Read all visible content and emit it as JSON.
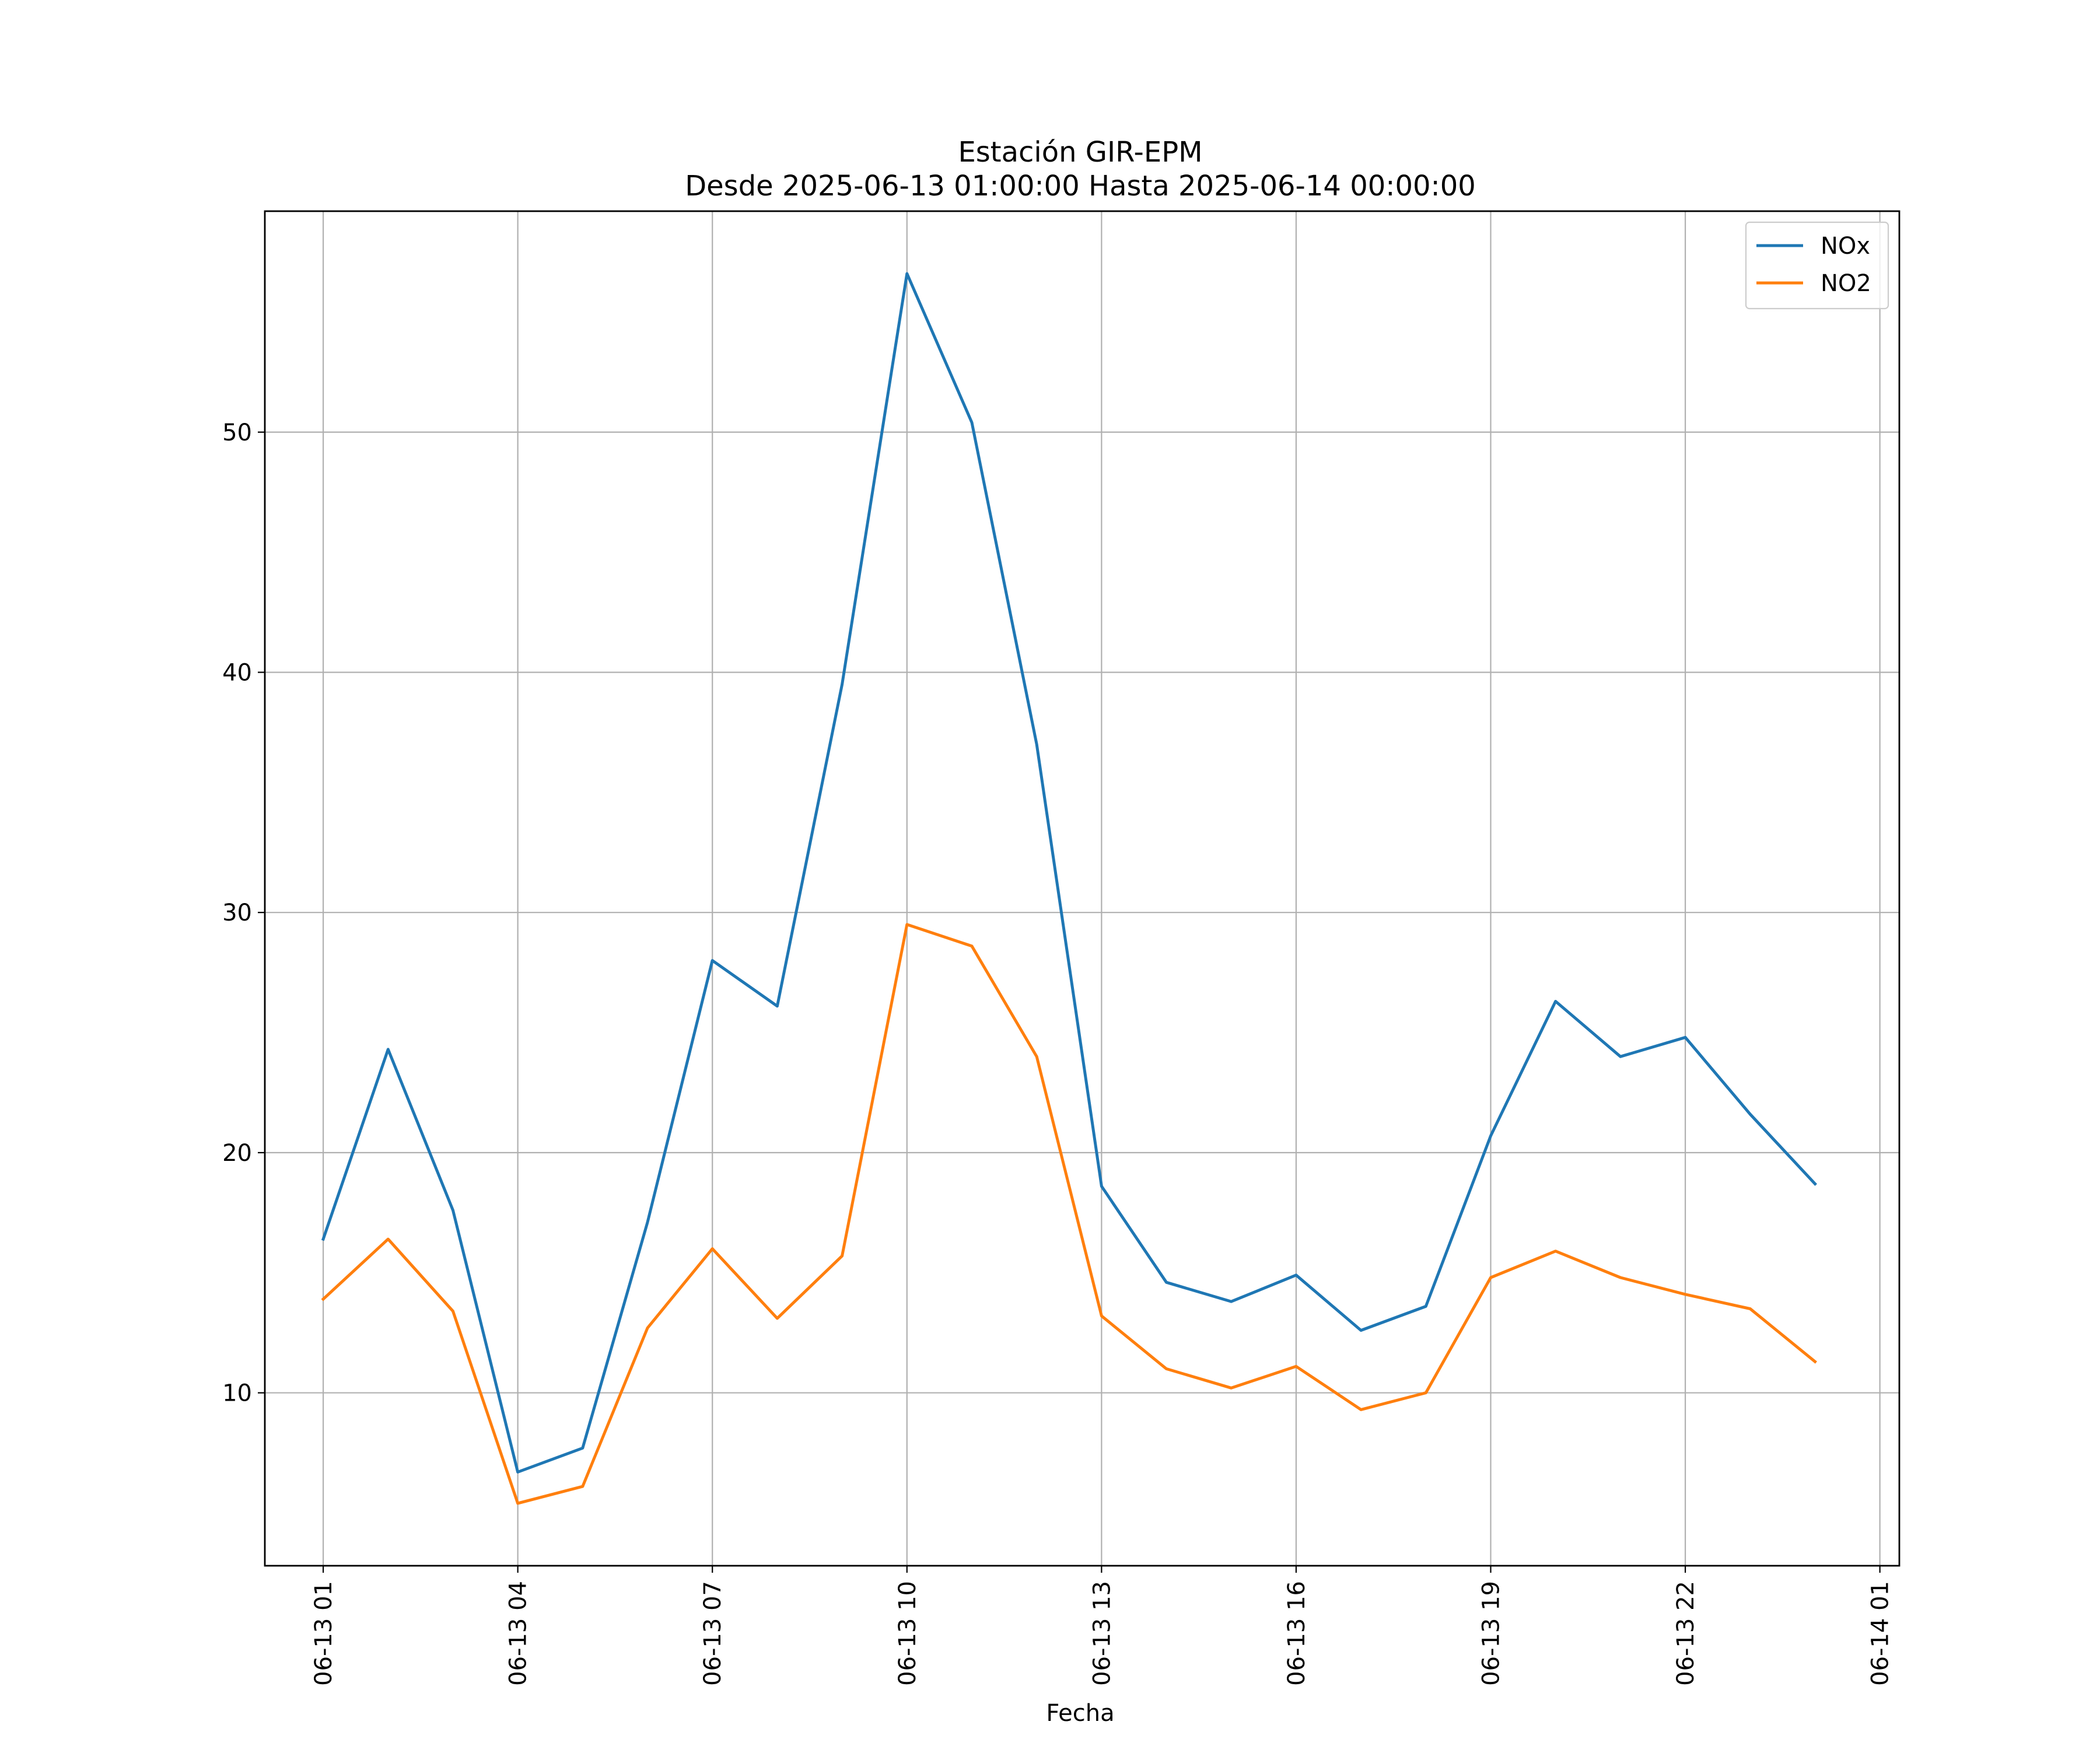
{
  "chart_data": {
    "type": "line",
    "title": "Estación GIR-EPM",
    "subtitle": "Desde 2025-06-13 01:00:00 Hasta 2025-06-14 00:00:00",
    "xlabel": "Fecha",
    "ylabel": "",
    "x": [
      "06-13 01",
      "06-13 02",
      "06-13 03",
      "06-13 04",
      "06-13 05",
      "06-13 06",
      "06-13 07",
      "06-13 08",
      "06-13 09",
      "06-13 10",
      "06-13 11",
      "06-13 12",
      "06-13 13",
      "06-13 14",
      "06-13 15",
      "06-13 16",
      "06-13 17",
      "06-13 18",
      "06-13 19",
      "06-13 20",
      "06-13 21",
      "06-13 22",
      "06-13 23",
      "06-14 00"
    ],
    "x_ticks": [
      "06-13 01",
      "06-13 04",
      "06-13 07",
      "06-13 10",
      "06-13 13",
      "06-13 16",
      "06-13 19",
      "06-13 22",
      "06-14 01"
    ],
    "y_ticks": [
      10,
      20,
      30,
      40,
      50
    ],
    "xlim_hours": [
      -0.9,
      24.3
    ],
    "ylim": [
      2.8,
      59.2
    ],
    "grid": true,
    "legend_position": "top-right",
    "series": [
      {
        "name": "NOx",
        "color": "#1f77b4",
        "values": [
          16.4,
          24.3,
          17.6,
          6.7,
          7.7,
          17.1,
          28.0,
          26.1,
          39.5,
          56.6,
          50.4,
          37.0,
          18.6,
          14.6,
          13.8,
          14.9,
          12.6,
          13.6,
          20.7,
          26.3,
          24.0,
          24.8,
          21.6,
          18.7
        ]
      },
      {
        "name": "NO2",
        "color": "#ff7f0e",
        "values": [
          13.9,
          16.4,
          13.4,
          5.4,
          6.1,
          12.7,
          16.0,
          13.1,
          15.7,
          29.5,
          28.6,
          24.0,
          13.2,
          11.0,
          10.2,
          11.1,
          9.3,
          10.0,
          14.8,
          15.9,
          14.8,
          14.1,
          13.5,
          11.3
        ]
      }
    ]
  }
}
